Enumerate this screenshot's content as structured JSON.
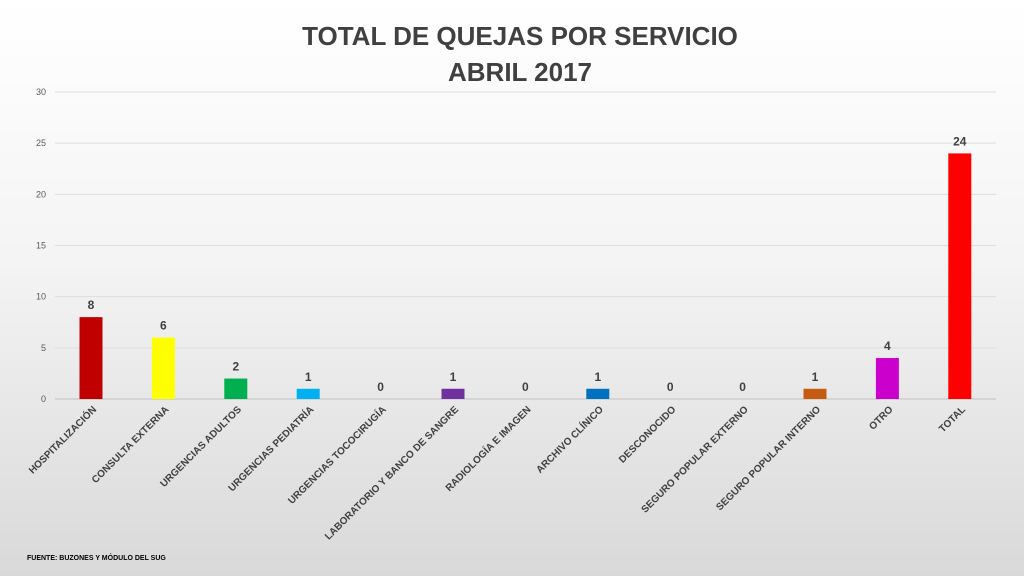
{
  "chart_data": {
    "type": "bar",
    "title": "TOTAL DE QUEJAS POR SERVICIO",
    "subtitle": "ABRIL 2017",
    "categories": [
      "HOSPITALIZACIÓN",
      "CONSULTA EXTERNA",
      "URGENCIAS ADULTOS",
      "URGENCIAS PEDIATRÍA",
      "URGENCIAS TOCOCIRUGÍA",
      "LABORATORIO Y BANCO DE SANGRE",
      "RADIOLOGÍA E IMAGEN",
      "ARCHIVO CLÍNICO",
      "DESCONOCIDO",
      "SEGURO POPULAR EXTERNO",
      "SEGURO POPULAR INTERNO",
      "OTRO",
      "TOTAL"
    ],
    "values": [
      8,
      6,
      2,
      1,
      0,
      1,
      0,
      1,
      0,
      0,
      1,
      4,
      24
    ],
    "colors": [
      "#C00000",
      "#FFFF00",
      "#00B050",
      "#00B0F0",
      "#A6A6A6",
      "#7030A0",
      "#A6A6A6",
      "#0070C0",
      "#A6A6A6",
      "#A6A6A6",
      "#C55A11",
      "#CC00CC",
      "#FF0000"
    ],
    "ylim": [
      0,
      30
    ],
    "yticks": [
      "0",
      "5",
      "10",
      "15",
      "20",
      "25",
      "30"
    ],
    "grid": true,
    "data_labels": true,
    "legend": "none"
  },
  "footer": {
    "source": "FUENTE: BUZONES Y MÓDULO DEL SUG"
  }
}
